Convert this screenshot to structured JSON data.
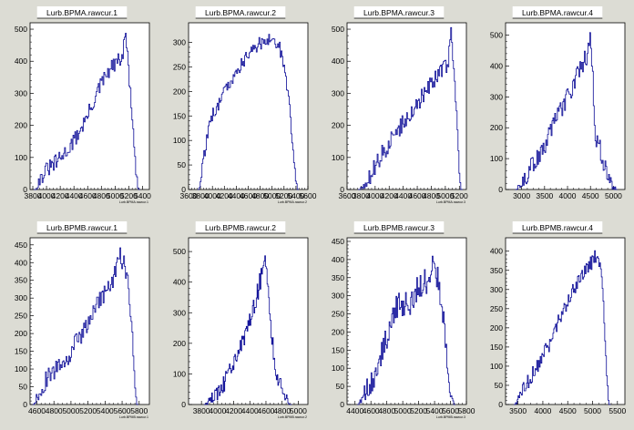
{
  "colors": {
    "background": "#dcdcd4",
    "frame": "#ffffff",
    "line": "#0a0a96"
  },
  "chart_data": [
    {
      "type": "line",
      "title": "Lurb.BPMA.rawcur.1",
      "xlabel": "Lurb.BPMA.rawcur.1",
      "xlim": [
        3760,
        5500
      ],
      "ylim": [
        0,
        520
      ],
      "xticks": [
        3800,
        4000,
        4200,
        4400,
        4600,
        4800,
        5000,
        5200,
        5400
      ],
      "xtick_labels": [
        "3800",
        "4000",
        "4200",
        "4400",
        "4600",
        "4800",
        "5000",
        "5200",
        "5400"
      ],
      "yticks": [
        0,
        100,
        200,
        300,
        400,
        500
      ],
      "ytick_labels": [
        "0",
        "100",
        "200",
        "300",
        "400",
        "500"
      ],
      "series": [
        {
          "jitter": 25,
          "points": [
            [
              3840,
              0
            ],
            [
              3900,
              30
            ],
            [
              4000,
              60
            ],
            [
              4200,
              95
            ],
            [
              4400,
              150
            ],
            [
              4600,
              230
            ],
            [
              4800,
              330
            ],
            [
              4950,
              380
            ],
            [
              5050,
              400
            ],
            [
              5120,
              420
            ],
            [
              5150,
              500
            ],
            [
              5200,
              370
            ],
            [
              5260,
              200
            ],
            [
              5300,
              50
            ],
            [
              5340,
              0
            ]
          ]
        }
      ]
    },
    {
      "type": "line",
      "title": "Lurb.BPMA.rawcur.2",
      "xlabel": "Lurb.BPMA.rawcur.2",
      "xlim": [
        3600,
        5600
      ],
      "ylim": [
        0,
        340
      ],
      "xticks": [
        3600,
        3800,
        4000,
        4200,
        4400,
        4600,
        4800,
        5000,
        5200,
        5400,
        5600
      ],
      "xtick_labels": [
        "3600",
        "3800",
        "4000",
        "4200",
        "4400",
        "4600",
        "4800",
        "5000",
        "5200",
        "5400",
        "5600"
      ],
      "yticks": [
        0,
        50,
        100,
        150,
        200,
        250,
        300
      ],
      "ytick_labels": [
        "0",
        "50",
        "100",
        "150",
        "200",
        "250",
        "300"
      ],
      "series": [
        {
          "jitter": 14,
          "points": [
            [
              3780,
              0
            ],
            [
              3830,
              40
            ],
            [
              3900,
              100
            ],
            [
              4000,
              150
            ],
            [
              4200,
              200
            ],
            [
              4400,
              240
            ],
            [
              4600,
              275
            ],
            [
              4800,
              300
            ],
            [
              5000,
              305
            ],
            [
              5100,
              300
            ],
            [
              5200,
              260
            ],
            [
              5280,
              180
            ],
            [
              5350,
              80
            ],
            [
              5420,
              0
            ]
          ]
        }
      ]
    },
    {
      "type": "line",
      "title": "Lurb.BPMA.rawcur.3",
      "xlabel": "Lurb.BPMA.rawcur.3",
      "xlim": [
        3600,
        5300
      ],
      "ylim": [
        0,
        520
      ],
      "xticks": [
        3600,
        3800,
        4000,
        4200,
        4400,
        4600,
        4800,
        5000,
        5200
      ],
      "xtick_labels": [
        "3600",
        "3800",
        "4000",
        "4200",
        "4400",
        "4600",
        "4800",
        "5000",
        "5200"
      ],
      "yticks": [
        0,
        100,
        200,
        300,
        400,
        500
      ],
      "ytick_labels": [
        "0",
        "100",
        "200",
        "300",
        "400",
        "500"
      ],
      "series": [
        {
          "jitter": 28,
          "points": [
            [
              3780,
              0
            ],
            [
              3900,
              30
            ],
            [
              4100,
              110
            ],
            [
              4300,
              180
            ],
            [
              4500,
              240
            ],
            [
              4700,
              300
            ],
            [
              4900,
              360
            ],
            [
              5050,
              400
            ],
            [
              5080,
              500
            ],
            [
              5130,
              370
            ],
            [
              5180,
              150
            ],
            [
              5220,
              0
            ]
          ]
        }
      ]
    },
    {
      "type": "line",
      "title": "Lurb.BPMA.rawcur.4",
      "xlabel": "",
      "xlim": [
        2650,
        5250
      ],
      "ylim": [
        0,
        540
      ],
      "xticks": [
        3000,
        3500,
        4000,
        4500,
        5000
      ],
      "xtick_labels": [
        "3000",
        "3500",
        "4000",
        "4500",
        "5000"
      ],
      "yticks": [
        0,
        100,
        200,
        300,
        400,
        500
      ],
      "ytick_labels": [
        "0",
        "100",
        "200",
        "300",
        "400",
        "500"
      ],
      "series": [
        {
          "jitter": 30,
          "points": [
            [
              2900,
              0
            ],
            [
              3000,
              20
            ],
            [
              3200,
              70
            ],
            [
              3500,
              140
            ],
            [
              3800,
              240
            ],
            [
              4100,
              330
            ],
            [
              4300,
              400
            ],
            [
              4450,
              440
            ],
            [
              4500,
              510
            ],
            [
              4550,
              380
            ],
            [
              4600,
              160
            ],
            [
              4700,
              140
            ],
            [
              4800,
              80
            ],
            [
              4950,
              20
            ],
            [
              5050,
              0
            ]
          ]
        }
      ]
    },
    {
      "type": "line",
      "title": "Lurb.BPMB.rawcur.1",
      "xlabel": "Lurb.BPMB.rawcur.1",
      "xlim": [
        4520,
        5920
      ],
      "ylim": [
        0,
        470
      ],
      "xticks": [
        4600,
        4800,
        5000,
        5200,
        5400,
        5600,
        5800
      ],
      "xtick_labels": [
        "4600",
        "4800",
        "5000",
        "5200",
        "5400",
        "5600",
        "5800"
      ],
      "yticks": [
        0,
        50,
        100,
        150,
        200,
        250,
        300,
        350,
        400,
        450
      ],
      "ytick_labels": [
        "0",
        "50",
        "100",
        "150",
        "200",
        "250",
        "300",
        "350",
        "400",
        "450"
      ],
      "series": [
        {
          "jitter": 28,
          "points": [
            [
              4570,
              0
            ],
            [
              4630,
              40
            ],
            [
              4700,
              65
            ],
            [
              4800,
              90
            ],
            [
              5000,
              150
            ],
            [
              5200,
              230
            ],
            [
              5400,
              320
            ],
            [
              5500,
              350
            ],
            [
              5560,
              420
            ],
            [
              5620,
              400
            ],
            [
              5680,
              330
            ],
            [
              5730,
              150
            ],
            [
              5770,
              0
            ]
          ]
        }
      ]
    },
    {
      "type": "line",
      "title": "Lurb.BPMB.rawcur.2",
      "xlabel": "Lurb.BPMB.rawcur.2",
      "xlim": [
        3640,
        5120
      ],
      "ylim": [
        0,
        545
      ],
      "xticks": [
        3800,
        4000,
        4200,
        4400,
        4600,
        4800,
        5000
      ],
      "xtick_labels": [
        "3800",
        "4000",
        "4200",
        "4400",
        "4600",
        "4800",
        "5000"
      ],
      "yticks": [
        0,
        100,
        200,
        300,
        400,
        500
      ],
      "ytick_labels": [
        "0",
        "100",
        "200",
        "300",
        "400",
        "500"
      ],
      "series": [
        {
          "jitter": 32,
          "points": [
            [
              3850,
              0
            ],
            [
              3950,
              30
            ],
            [
              4100,
              80
            ],
            [
              4250,
              160
            ],
            [
              4400,
              280
            ],
            [
              4500,
              370
            ],
            [
              4550,
              430
            ],
            [
              4600,
              470
            ],
            [
              4620,
              400
            ],
            [
              4660,
              250
            ],
            [
              4720,
              120
            ],
            [
              4800,
              40
            ],
            [
              4900,
              0
            ]
          ]
        }
      ]
    },
    {
      "type": "line",
      "title": "Lurb.BPMB.rawcur.3",
      "xlabel": "Lurb.BPMB.rawcur.3",
      "xlim": [
        4300,
        5800
      ],
      "ylim": [
        0,
        460
      ],
      "xticks": [
        4400,
        4600,
        4800,
        5000,
        5200,
        5400,
        5600,
        5800
      ],
      "xtick_labels": [
        "4400",
        "4600",
        "4800",
        "5000",
        "5200",
        "5400",
        "5600",
        "5800"
      ],
      "yticks": [
        0,
        50,
        100,
        150,
        200,
        250,
        300,
        350,
        400,
        450
      ],
      "ytick_labels": [
        "0",
        "50",
        "100",
        "150",
        "200",
        "250",
        "300",
        "350",
        "400",
        "450"
      ],
      "series": [
        {
          "jitter": 35,
          "points": [
            [
              4450,
              0
            ],
            [
              4550,
              40
            ],
            [
              4700,
              110
            ],
            [
              4820,
              200
            ],
            [
              4900,
              270
            ],
            [
              5000,
              280
            ],
            [
              5100,
              270
            ],
            [
              5200,
              330
            ],
            [
              5300,
              340
            ],
            [
              5380,
              400
            ],
            [
              5450,
              340
            ],
            [
              5520,
              220
            ],
            [
              5580,
              80
            ],
            [
              5640,
              0
            ]
          ]
        }
      ]
    },
    {
      "type": "line",
      "title": "Lurb.BPMB.rawcur.4",
      "xlabel": "",
      "xlim": [
        3250,
        5650
      ],
      "ylim": [
        0,
        435
      ],
      "xticks": [
        3500,
        4000,
        4500,
        5000,
        5500
      ],
      "xtick_labels": [
        "3500",
        "4000",
        "4500",
        "5000",
        "5500"
      ],
      "yticks": [
        0,
        50,
        100,
        150,
        200,
        250,
        300,
        350,
        400
      ],
      "ytick_labels": [
        "0",
        "50",
        "100",
        "150",
        "200",
        "250",
        "300",
        "350",
        "400"
      ],
      "series": [
        {
          "jitter": 20,
          "points": [
            [
              3450,
              0
            ],
            [
              3550,
              30
            ],
            [
              3800,
              80
            ],
            [
              4100,
              150
            ],
            [
              4400,
              240
            ],
            [
              4700,
              320
            ],
            [
              5000,
              375
            ],
            [
              5100,
              390
            ],
            [
              5150,
              360
            ],
            [
              5220,
              280
            ],
            [
              5280,
              100
            ],
            [
              5330,
              0
            ]
          ]
        }
      ]
    }
  ]
}
